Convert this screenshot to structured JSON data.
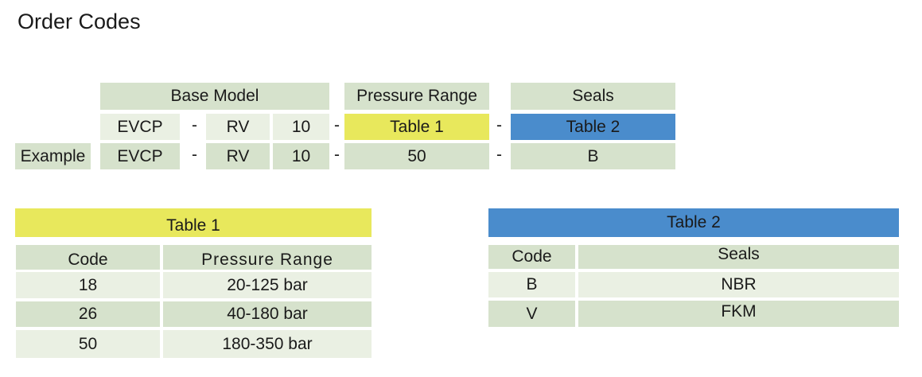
{
  "title": "Order Codes",
  "order": {
    "headers": {
      "base_model": "Base Model",
      "pressure_range": "Pressure Range",
      "seals": "Seals"
    },
    "template": {
      "model": "EVCP",
      "type": "RV",
      "size": "10",
      "pressure": "Table 1",
      "seals": "Table 2"
    },
    "example": {
      "label": "Example",
      "model": "EVCP",
      "type": "RV",
      "size": "10",
      "pressure": "50",
      "seals": "B"
    },
    "separator": "-"
  },
  "table1": {
    "title": "Table 1",
    "headers": [
      "Code",
      "Pressure Range"
    ],
    "rows": [
      [
        "18",
        "20-125 bar"
      ],
      [
        "26",
        "40-180 bar"
      ],
      [
        "50",
        "180-350 bar"
      ]
    ]
  },
  "table2": {
    "title": "Table 2",
    "headers": [
      "Code",
      "Seals"
    ],
    "rows": [
      [
        "B",
        "NBR"
      ],
      [
        "V",
        "FKM"
      ]
    ]
  },
  "colors": {
    "yellow": "#e8e85c",
    "blue": "#4a8ccc",
    "green_dark": "#d6e2cc",
    "green_light": "#eaf0e3"
  }
}
